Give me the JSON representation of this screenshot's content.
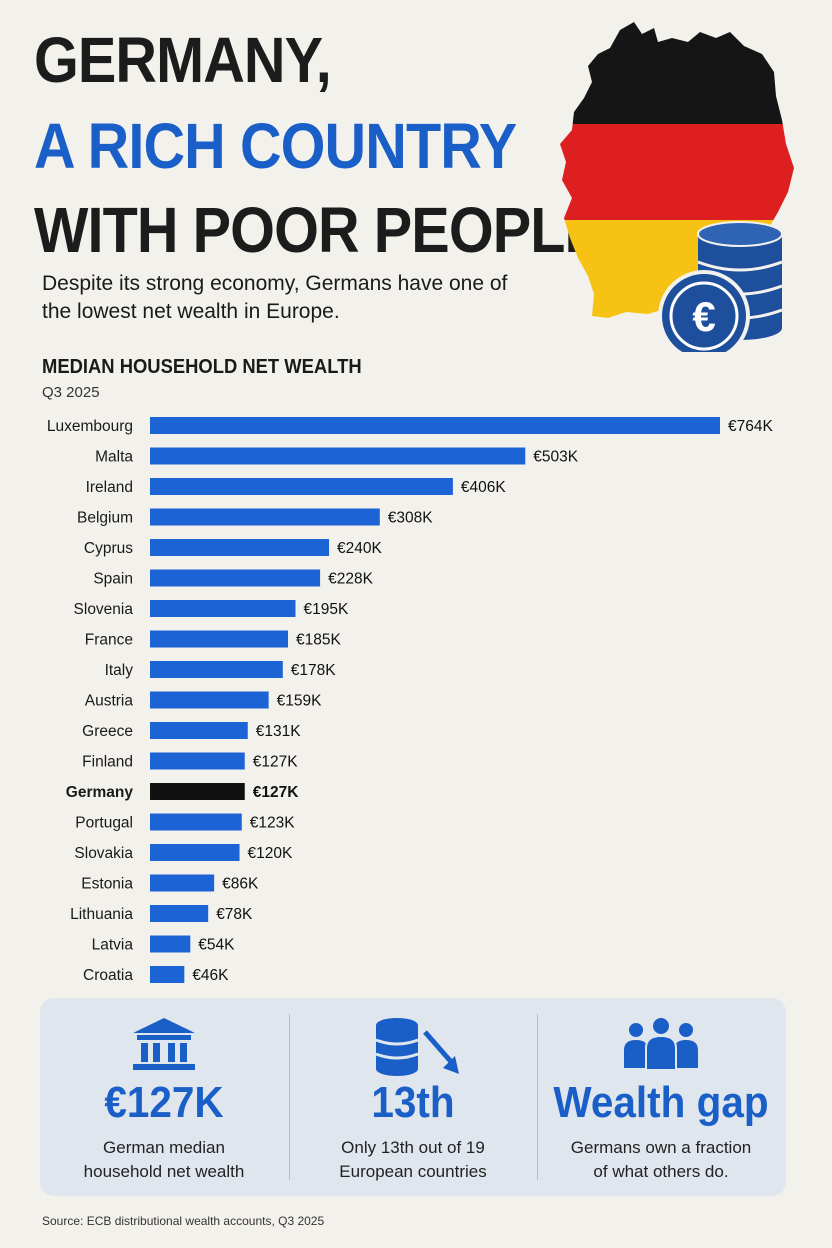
{
  "title": {
    "line1": "GERMANY,",
    "line2": "A RICH COUNTRY",
    "line3": "WITH POOR PEOPLE"
  },
  "subtitle": "Despite its strong economy, Germans have one of the lowest net wealth in Europe.",
  "colors": {
    "accent": "#1a5fc8",
    "bar": "#1c63d6",
    "highlight_bar": "#111111",
    "flag_black": "#151515",
    "flag_red": "#dd1f1f",
    "flag_gold": "#f6c315",
    "coin": "#1e4f9c"
  },
  "icons": [
    "germany-map-icon",
    "euro-coin-icon",
    "bank-icon",
    "database-down-icon",
    "people-icon"
  ],
  "chart_data": {
    "type": "bar",
    "orientation": "horizontal",
    "title": "MEDIAN HOUSEHOLD NET WEALTH",
    "subtitle": "Q3 2025",
    "unit": "€K",
    "highlight": "Germany",
    "categories": [
      "Luxembourg",
      "Malta",
      "Ireland",
      "Belgium",
      "Cyprus",
      "Spain",
      "Slovenia",
      "France",
      "Italy",
      "Austria",
      "Greece",
      "Finland",
      "Germany",
      "Portugal",
      "Slovakia",
      "Estonia",
      "Lithuania",
      "Latvia",
      "Croatia"
    ],
    "values": [
      764,
      503,
      406,
      308,
      240,
      228,
      195,
      185,
      178,
      159,
      131,
      127,
      127,
      123,
      120,
      86,
      78,
      54,
      46
    ],
    "labels": [
      "€764K",
      "€503K",
      "€406K",
      "€308K",
      "€240K",
      "€228K",
      "€195K",
      "€185K",
      "€178K",
      "€159K",
      "€131K",
      "€127K",
      "€127K",
      "€123K",
      "€120K",
      "€86K",
      "€78K",
      "€54K",
      "€46K"
    ],
    "xlim": [
      0,
      764
    ]
  },
  "stats": [
    {
      "icon": "bank-icon",
      "value": "€127K",
      "desc_line1": "German median",
      "desc_line2": "household net wealth"
    },
    {
      "icon": "database-down-icon",
      "value": "13th",
      "desc_line1": "Only 13th out of 19",
      "desc_line2": "European countries"
    },
    {
      "icon": "people-icon",
      "value": "Wealth gap",
      "desc_line1": "Germans own a fraction",
      "desc_line2": "of what others do."
    }
  ],
  "source": "Source: ECB distributional wealth accounts, Q3 2025"
}
